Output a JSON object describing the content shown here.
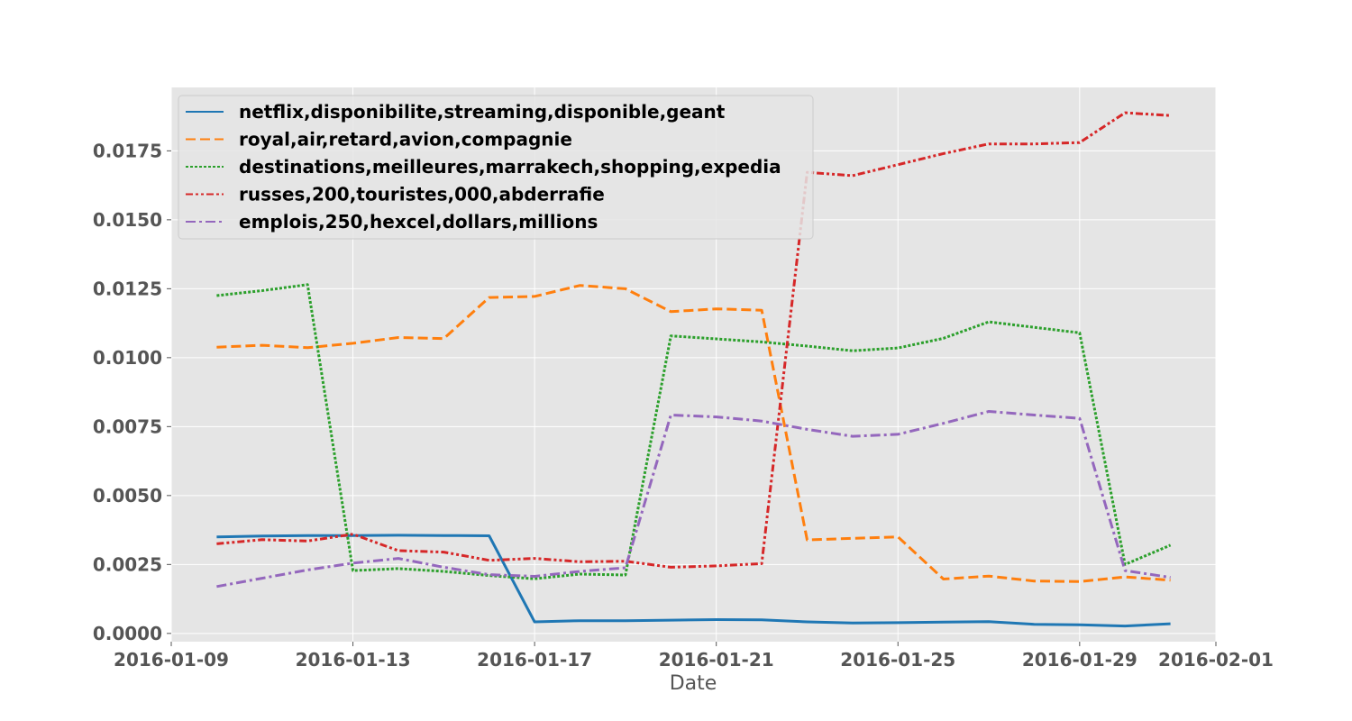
{
  "chart_data": {
    "type": "line",
    "title": "",
    "xlabel": "Date",
    "ylabel": "",
    "x": [
      "2016-01-10",
      "2016-01-11",
      "2016-01-12",
      "2016-01-13",
      "2016-01-14",
      "2016-01-15",
      "2016-01-16",
      "2016-01-17",
      "2016-01-18",
      "2016-01-19",
      "2016-01-20",
      "2016-01-21",
      "2016-01-22",
      "2016-01-23",
      "2016-01-24",
      "2016-01-25",
      "2016-01-26",
      "2016-01-27",
      "2016-01-28",
      "2016-01-29",
      "2016-01-30",
      "2016-01-31"
    ],
    "xlim": [
      "2016-01-09",
      "2016-02-01"
    ],
    "x_ticks": [
      "2016-01-09",
      "2016-01-13",
      "2016-01-17",
      "2016-01-21",
      "2016-01-25",
      "2016-01-29",
      "2016-02-01"
    ],
    "ylim": [
      -0.0003,
      0.0198
    ],
    "y_ticks": [
      "0.0000",
      "0.0025",
      "0.0050",
      "0.0075",
      "0.0100",
      "0.0125",
      "0.0150",
      "0.0175"
    ],
    "grid": true,
    "legend_position": "top-left",
    "series": [
      {
        "name": "netflix,disponibilite,streaming,disponible,geant",
        "color": "#1f77b4",
        "style": "solid",
        "values": [
          0.0035,
          0.00353,
          0.00355,
          0.00355,
          0.00356,
          0.00355,
          0.00354,
          0.00042,
          0.00046,
          0.00046,
          0.00048,
          0.0005,
          0.00049,
          0.00042,
          0.00038,
          0.00039,
          0.00041,
          0.00043,
          0.00033,
          0.00031,
          0.00027,
          0.00035
        ]
      },
      {
        "name": "royal,air,retard,avion,compagnie",
        "color": "#ff7f0e",
        "style": "dashed",
        "values": [
          0.01038,
          0.01045,
          0.01036,
          0.01052,
          0.01073,
          0.01069,
          0.01218,
          0.01222,
          0.01262,
          0.0125,
          0.01167,
          0.01177,
          0.01172,
          0.00339,
          0.00345,
          0.0035,
          0.00197,
          0.00208,
          0.0019,
          0.00188,
          0.00205,
          0.00193
        ]
      },
      {
        "name": "destinations,meilleures,marrakech,shopping,expedia",
        "color": "#2ca02c",
        "style": "dotted",
        "values": [
          0.01225,
          0.01243,
          0.01265,
          0.00228,
          0.00235,
          0.00225,
          0.0021,
          0.00198,
          0.00215,
          0.00212,
          0.01079,
          0.01068,
          0.01057,
          0.01042,
          0.01025,
          0.01035,
          0.0107,
          0.0113,
          0.0111,
          0.0109,
          0.0025,
          0.0032
        ]
      },
      {
        "name": "russes,200,touristes,000,abderrafie",
        "color": "#d62728",
        "style": "dashdotdot",
        "values": [
          0.00325,
          0.0034,
          0.00335,
          0.0036,
          0.003,
          0.00295,
          0.00265,
          0.00272,
          0.0026,
          0.00262,
          0.0024,
          0.00245,
          0.00253,
          0.01672,
          0.0166,
          0.017,
          0.0174,
          0.01775,
          0.01775,
          0.0178,
          0.01888,
          0.01878
        ]
      },
      {
        "name": "emplois,250,hexcel,dollars,millions",
        "color": "#9467bd",
        "style": "dashdot",
        "values": [
          0.0017,
          0.002,
          0.0023,
          0.00255,
          0.00272,
          0.0024,
          0.00213,
          0.00207,
          0.00225,
          0.00238,
          0.00792,
          0.00785,
          0.0077,
          0.0074,
          0.00715,
          0.00722,
          0.00762,
          0.00805,
          0.00792,
          0.0078,
          0.00228,
          0.00203
        ]
      }
    ]
  }
}
